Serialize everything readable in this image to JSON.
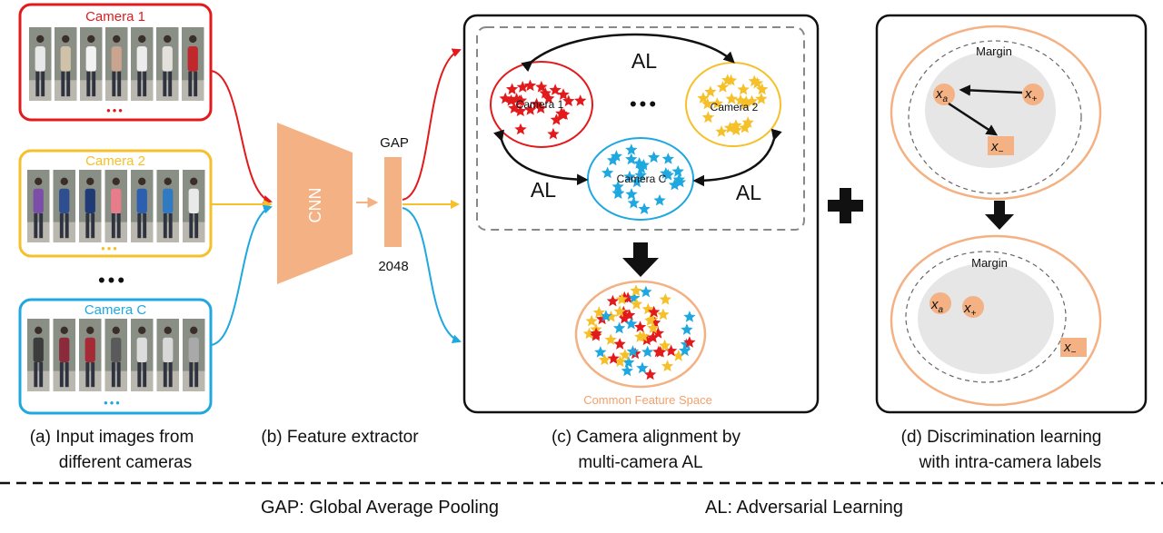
{
  "colors": {
    "camera1": "#e31a1c",
    "camera2": "#f5c02a",
    "cameraC": "#1fa8e0",
    "peach": "#f4b183",
    "stroke": "#111111",
    "gray_fill": "#e6e6e6"
  },
  "input_panels": [
    {
      "title": "Camera 1",
      "dots": "•••"
    },
    {
      "title": "Camera 2",
      "dots": "•••"
    },
    {
      "title": "Camera C",
      "dots": "•••"
    }
  ],
  "between_dots": "•••",
  "cnn_label": "CNN",
  "gap_label": "GAP",
  "dim_label": "2048",
  "alignment": {
    "al_top": "AL",
    "al_left": "AL",
    "al_right": "AL",
    "dots": "•••",
    "cluster1": "Camera 1",
    "cluster2": "Camera 2",
    "clusterC": "Camera C",
    "common_space": "Common Feature Space"
  },
  "discrimination": {
    "margin_top": "Margin",
    "margin_bottom": "Margin",
    "xa": "x",
    "xa_sub": "a",
    "xp": "x",
    "xp_sub": "+",
    "xn": "x",
    "xn_sub": "−"
  },
  "captions": {
    "a_line1": "(a) Input images from",
    "a_line2": "different cameras",
    "b": "(b) Feature extractor",
    "c_line1": "(c) Camera alignment by",
    "c_line2": "multi-camera AL",
    "d_line1": "(d) Discrimination learning",
    "d_line2": "with intra-camera labels"
  },
  "footer": {
    "gap_def": "GAP: Global Average Pooling",
    "al_def": "AL: Adversarial Learning"
  }
}
